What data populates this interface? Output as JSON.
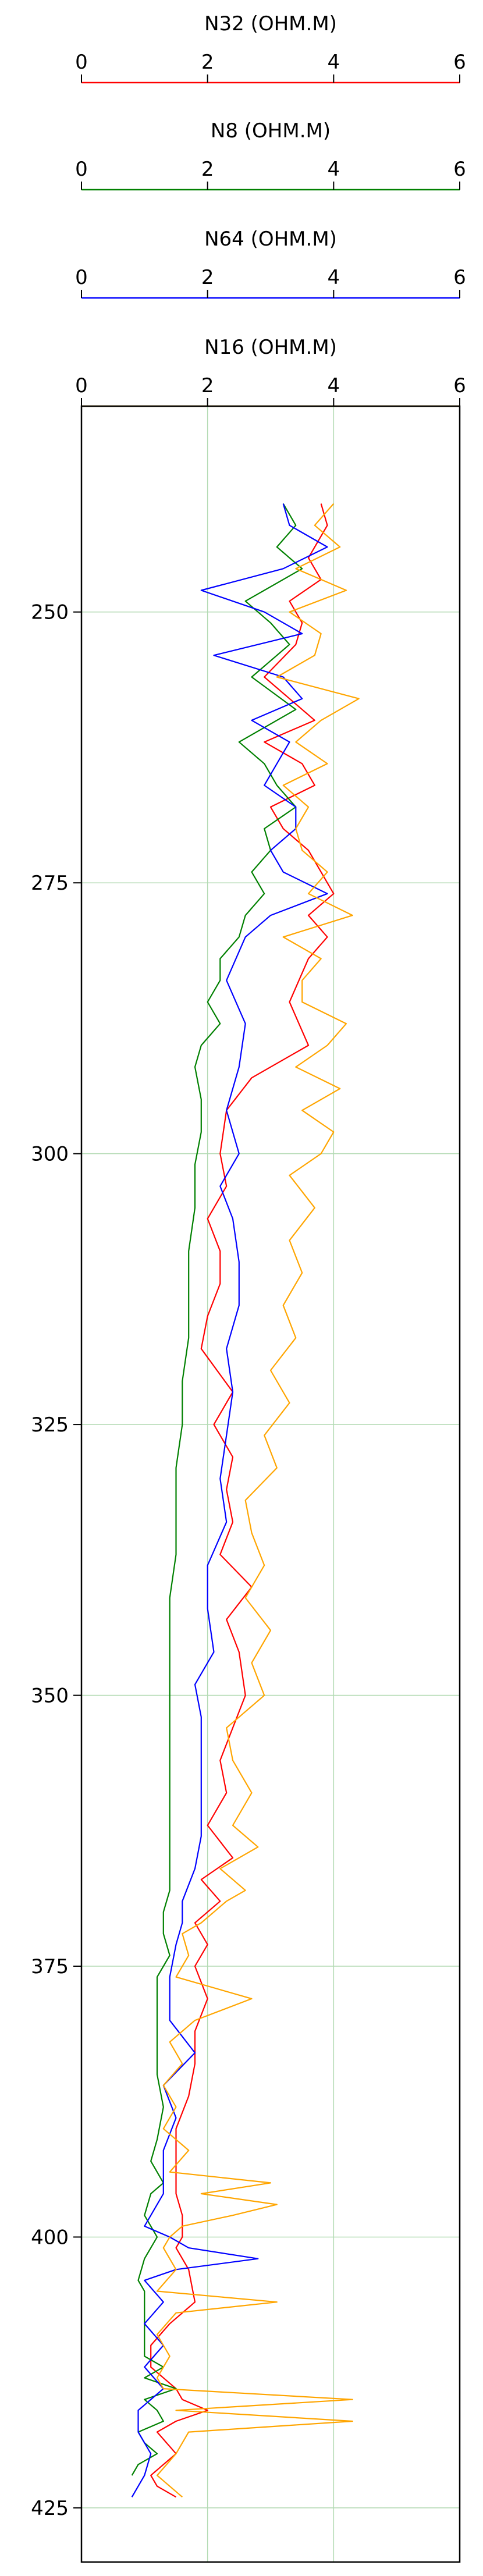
{
  "chart_data": {
    "type": "line",
    "subtype": "well-log",
    "scale_tracks": [
      {
        "curve": "N32",
        "title": "N32 (OHM.M)",
        "color": "#ff0000"
      },
      {
        "curve": "N8",
        "title": "N8 (OHM.M)",
        "color": "#008000"
      },
      {
        "curve": "N64",
        "title": "N64 (OHM.M)",
        "color": "#0000ff"
      },
      {
        "curve": "N16",
        "title": "N16 (OHM.M)",
        "color": "#ffa500"
      }
    ],
    "x_ticks": [
      "0",
      "2",
      "4",
      "6"
    ],
    "xlim": [
      0,
      6
    ],
    "ylim": [
      231,
      430
    ],
    "y_inverted": true,
    "y_ticks": [
      "250",
      "275",
      "300",
      "325",
      "350",
      "375",
      "400",
      "425"
    ],
    "grid": true,
    "grid_color": "#b3dab3",
    "series": [
      {
        "name": "N32",
        "color": "#ff0000",
        "x": [
          3.8,
          3.9,
          3.6,
          3.8,
          3.3,
          3.5,
          3.4,
          2.9,
          3.3,
          3.7,
          2.9,
          3.5,
          3.7,
          3.0,
          3.2,
          3.6,
          3.8,
          4.0,
          3.6,
          3.9,
          3.6,
          3.3,
          3.6,
          2.7,
          2.3,
          2.2,
          2.3,
          2.0,
          2.2,
          2.2,
          2.0,
          1.9,
          2.4,
          2.1,
          2.4,
          2.3,
          2.4,
          2.2,
          2.7,
          2.3,
          2.5,
          2.6,
          2.4,
          2.2,
          2.3,
          2.0,
          2.4,
          1.9,
          2.2,
          1.8,
          2.0,
          1.8,
          2.0,
          1.8,
          1.8,
          1.7,
          1.5,
          1.5,
          1.5,
          1.5,
          1.6,
          1.6,
          1.5,
          1.7,
          1.8,
          1.4,
          1.1,
          1.1,
          1.5,
          1.6,
          2.0,
          1.5,
          1.2,
          1.5,
          1.3,
          1.1,
          1.2,
          1.5
        ],
        "y": [
          240,
          242,
          245,
          247,
          249,
          251,
          253,
          256,
          258,
          260,
          262,
          264,
          266,
          268,
          270,
          272,
          274,
          276,
          278,
          280,
          282,
          286,
          290,
          293,
          296,
          300,
          303,
          306,
          309,
          312,
          315,
          318,
          322,
          325,
          328,
          331,
          334,
          337,
          340,
          343,
          346,
          350,
          353,
          356,
          359,
          362,
          365,
          367,
          369,
          371,
          373,
          375,
          378,
          381,
          384,
          387,
          390,
          392,
          394,
          396,
          398,
          400,
          401,
          403,
          406,
          408,
          410,
          412,
          414,
          415,
          416,
          417,
          418,
          420,
          421,
          422,
          423,
          424
        ]
      },
      {
        "name": "N8",
        "color": "#008000",
        "x": [
          3.2,
          3.4,
          3.1,
          3.5,
          2.6,
          3.0,
          3.3,
          2.7,
          3.4,
          2.5,
          2.9,
          3.1,
          3.4,
          2.9,
          3.0,
          2.7,
          2.9,
          2.6,
          2.5,
          2.2,
          2.2,
          2.0,
          2.2,
          1.9,
          1.8,
          1.9,
          1.9,
          1.8,
          1.8,
          1.7,
          1.7,
          1.7,
          1.6,
          1.6,
          1.5,
          1.5,
          1.5,
          1.4,
          1.4,
          1.4,
          1.4,
          1.4,
          1.4,
          1.4,
          1.4,
          1.4,
          1.3,
          1.3,
          1.4,
          1.2,
          1.2,
          1.2,
          1.2,
          1.3,
          1.2,
          1.1,
          1.3,
          1.1,
          1.0,
          1.2,
          1.0,
          0.9,
          1.0,
          1.0,
          1.0,
          1.0,
          1.3,
          1.0,
          1.5,
          1.0,
          1.2,
          1.3,
          0.9,
          1.0,
          1.2,
          0.9,
          0.8
        ],
        "y": [
          240,
          242,
          244,
          246,
          249,
          251,
          253,
          256,
          259,
          262,
          264,
          266,
          268,
          270,
          272,
          274,
          276,
          278,
          280,
          282,
          284,
          286,
          288,
          290,
          292,
          295,
          298,
          301,
          305,
          309,
          313,
          317,
          321,
          325,
          329,
          333,
          337,
          341,
          345,
          349,
          353,
          357,
          361,
          363,
          366,
          368,
          370,
          372,
          374,
          376,
          379,
          382,
          385,
          388,
          391,
          393,
          395,
          396,
          398,
          400,
          402,
          404,
          405,
          407,
          409,
          411,
          412,
          413,
          414,
          415,
          416,
          417,
          418,
          419,
          420,
          421,
          422
        ]
      },
      {
        "name": "N64",
        "color": "#0000ff",
        "x": [
          3.2,
          3.3,
          3.9,
          3.2,
          1.9,
          2.9,
          3.5,
          2.1,
          3.2,
          3.5,
          2.7,
          3.3,
          3.1,
          2.9,
          3.4,
          3.4,
          3.0,
          3.2,
          3.9,
          3.0,
          2.6,
          2.3,
          2.6,
          2.5,
          2.3,
          2.5,
          2.2,
          2.4,
          2.5,
          2.5,
          2.3,
          2.4,
          2.3,
          2.2,
          2.3,
          2.0,
          2.0,
          2.1,
          1.8,
          1.9,
          1.9,
          1.9,
          1.9,
          1.8,
          1.6,
          1.6,
          1.5,
          1.4,
          1.4,
          1.8,
          1.3,
          1.5,
          1.3,
          1.3,
          1.3,
          1.2,
          1.1,
          1.0,
          1.4,
          1.7,
          2.8,
          1.5,
          1.0,
          1.3,
          1.0,
          1.3,
          1.0,
          1.3,
          0.9,
          0.9,
          1.1,
          1.0,
          0.8
        ],
        "y": [
          240,
          242,
          244,
          246,
          248,
          250,
          252,
          254,
          256,
          258,
          260,
          262,
          264,
          266,
          268,
          270,
          272,
          274,
          276,
          278,
          280,
          284,
          288,
          292,
          296,
          300,
          303,
          306,
          310,
          314,
          318,
          322,
          326,
          330,
          334,
          338,
          342,
          346,
          349,
          352,
          356,
          360,
          363,
          366,
          369,
          371,
          373,
          376,
          380,
          383,
          386,
          389,
          392,
          394,
          396,
          397,
          398,
          399,
          400,
          401,
          402,
          403,
          404,
          406,
          408,
          410,
          412,
          414,
          416,
          418,
          420,
          422,
          424
        ]
      },
      {
        "name": "N16",
        "color": "#ffa500",
        "x": [
          4.0,
          3.7,
          4.1,
          3.4,
          4.2,
          3.3,
          3.8,
          3.7,
          3.1,
          4.4,
          3.8,
          3.4,
          3.9,
          3.2,
          3.6,
          3.4,
          3.5,
          3.9,
          3.6,
          4.3,
          3.2,
          3.8,
          3.5,
          3.5,
          4.2,
          3.9,
          3.4,
          4.1,
          3.5,
          4.0,
          3.8,
          3.3,
          3.7,
          3.3,
          3.5,
          3.2,
          3.4,
          3.0,
          3.3,
          2.9,
          3.1,
          2.6,
          2.7,
          2.9,
          2.6,
          3.0,
          2.7,
          2.9,
          2.3,
          2.4,
          2.7,
          2.4,
          2.8,
          2.2,
          2.6,
          2.3,
          2.1,
          1.9,
          1.6,
          1.7,
          1.5,
          2.7,
          1.8,
          1.4,
          1.6,
          1.3,
          1.5,
          1.3,
          1.7,
          1.4,
          3.0,
          1.9,
          3.1,
          2.4,
          1.6,
          1.4,
          1.3,
          1.5,
          1.2,
          3.1,
          1.5,
          1.2,
          1.4,
          1.2,
          1.3,
          4.3,
          1.5,
          4.3,
          1.7,
          1.5,
          1.2,
          1.6
        ],
        "y": [
          240,
          242,
          244,
          246,
          248,
          250,
          252,
          254,
          256,
          258,
          260,
          262,
          264,
          266,
          268,
          270,
          272,
          274,
          276,
          278,
          280,
          282,
          284,
          286,
          288,
          290,
          292,
          294,
          296,
          298,
          300,
          302,
          305,
          308,
          311,
          314,
          317,
          320,
          323,
          326,
          329,
          332,
          335,
          338,
          341,
          344,
          347,
          350,
          353,
          356,
          359,
          362,
          364,
          366,
          368,
          369,
          370,
          371,
          372,
          374,
          376,
          378,
          380,
          382,
          384,
          386,
          388,
          390,
          392,
          394,
          395,
          396,
          397,
          398,
          399,
          400,
          401,
          403,
          405,
          406,
          407,
          409,
          411,
          413,
          414,
          415,
          416,
          417,
          418,
          420,
          422,
          424
        ]
      }
    ]
  }
}
